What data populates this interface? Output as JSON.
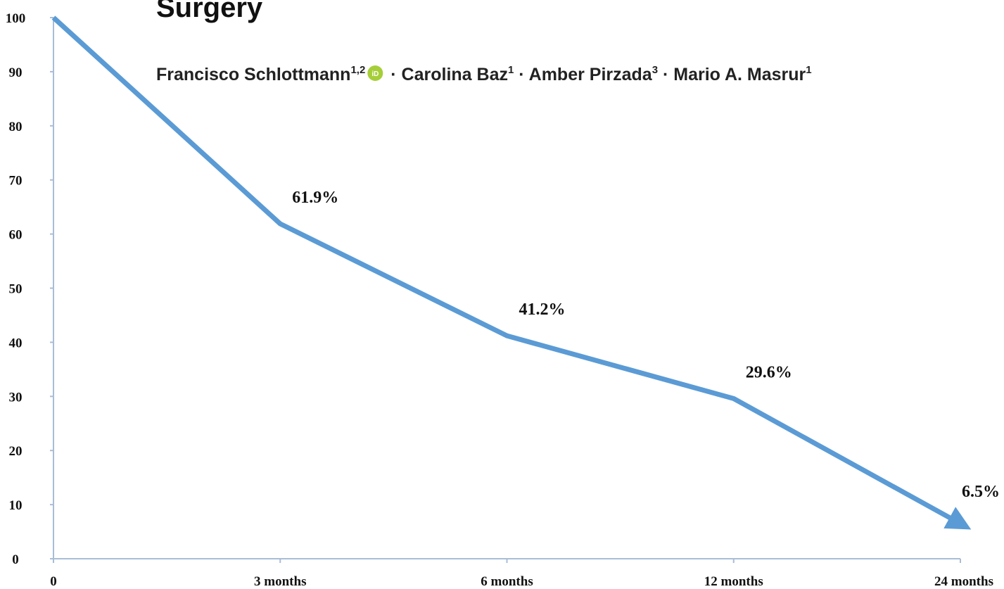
{
  "chart_data": {
    "type": "line",
    "title": "Surgery",
    "authors": [
      {
        "name": "Francisco Schlottmann",
        "affiliation": "1,2"
      },
      {
        "name": "Carolina Baz",
        "affiliation": "1"
      },
      {
        "name": "Amber Pirzada",
        "affiliation": "3"
      },
      {
        "name": "Mario A. Masrur",
        "affiliation": "1"
      }
    ],
    "separator": "·",
    "orcid_icon": "iD",
    "categories": [
      "0",
      "3 months",
      "6 months",
      "12 months",
      "24 months"
    ],
    "values": [
      100,
      61.9,
      41.2,
      29.6,
      6.5
    ],
    "value_labels": [
      null,
      "61.9%",
      "41.2%",
      "29.6%",
      "6.5%"
    ],
    "color": "#5b9bd5",
    "ylim": [
      0,
      100
    ],
    "yticks": [
      0,
      10,
      20,
      30,
      40,
      50,
      60,
      70,
      80,
      90,
      100
    ]
  }
}
